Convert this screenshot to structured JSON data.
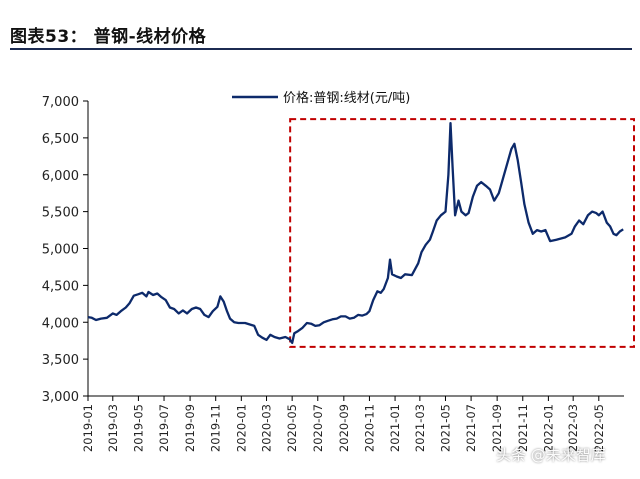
{
  "header": {
    "title": "图表53：  普钢-线材价格"
  },
  "watermark": "头条 @未来智库",
  "colors": {
    "line": "#0d2a6b",
    "highlight_box": "#c00000",
    "axis": "#000000"
  },
  "chart_data": {
    "type": "line",
    "title": "",
    "xlabel": "",
    "ylabel": "",
    "ylim": [
      3000,
      7000
    ],
    "yticks": [
      "3,000",
      "3,500",
      "4,000",
      "4,500",
      "5,000",
      "5,500",
      "6,000",
      "6,500",
      "7,000"
    ],
    "ytick_values": [
      3000,
      3500,
      4000,
      4500,
      5000,
      5500,
      6000,
      6500,
      7000
    ],
    "xticks": [
      "2019-01",
      "2019-03",
      "2019-05",
      "2019-07",
      "2019-09",
      "2019-11",
      "2020-01",
      "2020-03",
      "2020-05",
      "2020-07",
      "2020-09",
      "2020-11",
      "2021-01",
      "2021-03",
      "2021-05",
      "2021-07",
      "2021-09",
      "2021-11",
      "2022-01",
      "2022-03",
      "2022-05"
    ],
    "xlim": [
      "2019-01-01",
      "2022-06-30"
    ],
    "grid": false,
    "legend": "top-center",
    "annotation": {
      "type": "dashed-box",
      "x_range": [
        "2020-05-01",
        "2022-06-30"
      ],
      "y_range": [
        3720,
        6700
      ]
    },
    "series": [
      {
        "name": "价格:普钢:线材(元/吨)",
        "points": [
          [
            "2019-01-01",
            4070
          ],
          [
            "2019-01-10",
            4060
          ],
          [
            "2019-01-20",
            4030
          ],
          [
            "2019-02-01",
            4050
          ],
          [
            "2019-02-15",
            4060
          ],
          [
            "2019-03-01",
            4120
          ],
          [
            "2019-03-10",
            4100
          ],
          [
            "2019-03-20",
            4150
          ],
          [
            "2019-04-01",
            4200
          ],
          [
            "2019-04-10",
            4260
          ],
          [
            "2019-04-20",
            4360
          ],
          [
            "2019-05-01",
            4380
          ],
          [
            "2019-05-10",
            4400
          ],
          [
            "2019-05-20",
            4350
          ],
          [
            "2019-05-25",
            4410
          ],
          [
            "2019-06-05",
            4370
          ],
          [
            "2019-06-15",
            4390
          ],
          [
            "2019-06-25",
            4340
          ],
          [
            "2019-07-05",
            4300
          ],
          [
            "2019-07-15",
            4200
          ],
          [
            "2019-07-25",
            4180
          ],
          [
            "2019-08-05",
            4120
          ],
          [
            "2019-08-15",
            4160
          ],
          [
            "2019-08-25",
            4120
          ],
          [
            "2019-09-05",
            4180
          ],
          [
            "2019-09-15",
            4200
          ],
          [
            "2019-09-25",
            4180
          ],
          [
            "2019-10-05",
            4100
          ],
          [
            "2019-10-15",
            4070
          ],
          [
            "2019-10-25",
            4150
          ],
          [
            "2019-11-05",
            4210
          ],
          [
            "2019-11-12",
            4350
          ],
          [
            "2019-11-20",
            4280
          ],
          [
            "2019-11-28",
            4150
          ],
          [
            "2019-12-05",
            4050
          ],
          [
            "2019-12-15",
            4000
          ],
          [
            "2019-12-25",
            3990
          ],
          [
            "2020-01-10",
            3990
          ],
          [
            "2020-02-01",
            3950
          ],
          [
            "2020-02-10",
            3830
          ],
          [
            "2020-02-20",
            3790
          ],
          [
            "2020-03-01",
            3760
          ],
          [
            "2020-03-10",
            3830
          ],
          [
            "2020-03-20",
            3800
          ],
          [
            "2020-04-01",
            3780
          ],
          [
            "2020-04-15",
            3800
          ],
          [
            "2020-04-25",
            3770
          ],
          [
            "2020-05-01",
            3720
          ],
          [
            "2020-05-06",
            3850
          ],
          [
            "2020-05-15",
            3880
          ],
          [
            "2020-05-25",
            3920
          ],
          [
            "2020-06-05",
            3990
          ],
          [
            "2020-06-15",
            3980
          ],
          [
            "2020-06-25",
            3950
          ],
          [
            "2020-07-05",
            3960
          ],
          [
            "2020-07-15",
            4000
          ],
          [
            "2020-07-25",
            4020
          ],
          [
            "2020-08-05",
            4040
          ],
          [
            "2020-08-15",
            4050
          ],
          [
            "2020-08-25",
            4080
          ],
          [
            "2020-09-05",
            4080
          ],
          [
            "2020-09-15",
            4050
          ],
          [
            "2020-09-25",
            4060
          ],
          [
            "2020-10-05",
            4100
          ],
          [
            "2020-10-15",
            4090
          ],
          [
            "2020-10-25",
            4110
          ],
          [
            "2020-11-01",
            4150
          ],
          [
            "2020-11-10",
            4300
          ],
          [
            "2020-11-20",
            4420
          ],
          [
            "2020-11-28",
            4400
          ],
          [
            "2020-12-05",
            4450
          ],
          [
            "2020-12-15",
            4600
          ],
          [
            "2020-12-20",
            4850
          ],
          [
            "2020-12-25",
            4650
          ],
          [
            "2021-01-05",
            4620
          ],
          [
            "2021-01-15",
            4600
          ],
          [
            "2021-01-25",
            4650
          ],
          [
            "2021-02-10",
            4640
          ],
          [
            "2021-02-25",
            4800
          ],
          [
            "2021-03-05",
            4950
          ],
          [
            "2021-03-15",
            5050
          ],
          [
            "2021-03-25",
            5120
          ],
          [
            "2021-04-01",
            5230
          ],
          [
            "2021-04-10",
            5380
          ],
          [
            "2021-04-20",
            5450
          ],
          [
            "2021-05-01",
            5500
          ],
          [
            "2021-05-08",
            6000
          ],
          [
            "2021-05-13",
            6700
          ],
          [
            "2021-05-18",
            6100
          ],
          [
            "2021-05-24",
            5450
          ],
          [
            "2021-06-01",
            5650
          ],
          [
            "2021-06-08",
            5500
          ],
          [
            "2021-06-18",
            5450
          ],
          [
            "2021-06-25",
            5480
          ],
          [
            "2021-07-05",
            5700
          ],
          [
            "2021-07-15",
            5850
          ],
          [
            "2021-07-25",
            5900
          ],
          [
            "2021-08-05",
            5850
          ],
          [
            "2021-08-15",
            5800
          ],
          [
            "2021-08-25",
            5650
          ],
          [
            "2021-09-05",
            5750
          ],
          [
            "2021-09-15",
            5950
          ],
          [
            "2021-09-25",
            6150
          ],
          [
            "2021-10-05",
            6350
          ],
          [
            "2021-10-12",
            6420
          ],
          [
            "2021-10-20",
            6200
          ],
          [
            "2021-10-28",
            5900
          ],
          [
            "2021-11-05",
            5600
          ],
          [
            "2021-11-15",
            5350
          ],
          [
            "2021-11-25",
            5200
          ],
          [
            "2021-12-05",
            5250
          ],
          [
            "2021-12-15",
            5230
          ],
          [
            "2021-12-25",
            5250
          ],
          [
            "2022-01-05",
            5100
          ],
          [
            "2022-01-20",
            5120
          ],
          [
            "2022-02-10",
            5150
          ],
          [
            "2022-02-25",
            5200
          ],
          [
            "2022-03-05",
            5300
          ],
          [
            "2022-03-15",
            5380
          ],
          [
            "2022-03-25",
            5330
          ],
          [
            "2022-04-05",
            5450
          ],
          [
            "2022-04-15",
            5500
          ],
          [
            "2022-04-25",
            5480
          ],
          [
            "2022-05-01",
            5450
          ],
          [
            "2022-05-10",
            5500
          ],
          [
            "2022-05-20",
            5350
          ],
          [
            "2022-05-28",
            5300
          ],
          [
            "2022-06-05",
            5200
          ],
          [
            "2022-06-12",
            5180
          ],
          [
            "2022-06-20",
            5230
          ],
          [
            "2022-06-28",
            5260
          ]
        ]
      }
    ]
  }
}
